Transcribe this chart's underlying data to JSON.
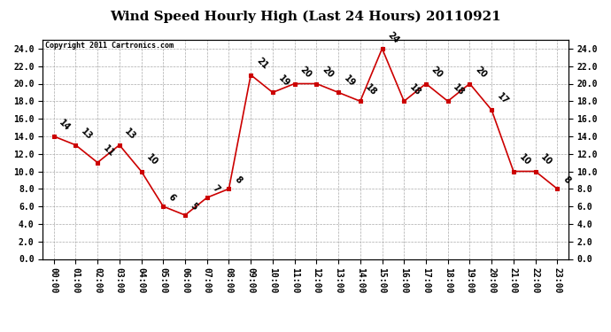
{
  "title": "Wind Speed Hourly High (Last 24 Hours) 20110921",
  "copyright": "Copyright 2011 Cartronics.com",
  "hours": [
    "00:00",
    "01:00",
    "02:00",
    "03:00",
    "04:00",
    "05:00",
    "06:00",
    "07:00",
    "08:00",
    "09:00",
    "10:00",
    "11:00",
    "12:00",
    "13:00",
    "14:00",
    "15:00",
    "16:00",
    "17:00",
    "18:00",
    "19:00",
    "20:00",
    "21:00",
    "22:00",
    "23:00"
  ],
  "values": [
    14,
    13,
    11,
    13,
    10,
    6,
    5,
    7,
    8,
    21,
    19,
    20,
    20,
    19,
    18,
    24,
    18,
    20,
    18,
    20,
    17,
    10,
    10,
    8
  ],
  "ylim_max": 25,
  "yticks": [
    0.0,
    2.0,
    4.0,
    6.0,
    8.0,
    10.0,
    12.0,
    14.0,
    16.0,
    18.0,
    20.0,
    22.0,
    24.0
  ],
  "line_color": "#cc0000",
  "bg_color": "#ffffff",
  "grid_color": "#aaaaaa",
  "title_fontsize": 11,
  "tick_fontsize": 7,
  "annotation_fontsize": 7,
  "copyright_fontsize": 6
}
